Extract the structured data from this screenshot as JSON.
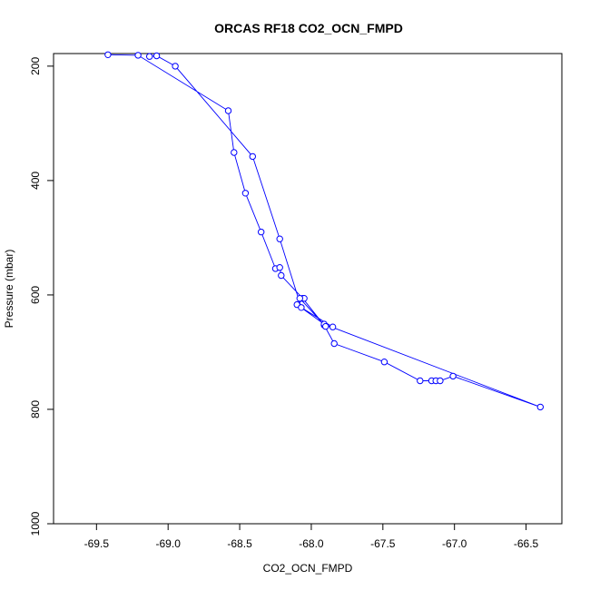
{
  "chart_data": {
    "type": "line",
    "title": "ORCAS RF18 CO2_OCN_FMPD",
    "xlabel": "CO2_OCN_FMPD",
    "ylabel": "Pressure (mbar)",
    "xlim": [
      -69.8,
      -66.25
    ],
    "ylim": [
      1000,
      178
    ],
    "y_reversed": true,
    "grid": false,
    "markers": "open-circle",
    "line_color": "#0000ff",
    "x_ticks": [
      -69.5,
      -69.0,
      -68.5,
      -68.0,
      -67.5,
      -67.0,
      -66.5
    ],
    "x_tick_labels": [
      "-69.5",
      "-69.0",
      "-68.5",
      "-68.0",
      "-67.5",
      "-67.0",
      "-66.5"
    ],
    "y_ticks": [
      200,
      400,
      600,
      800,
      1000
    ],
    "y_tick_labels": [
      "200",
      "400",
      "600",
      "800",
      "1000"
    ],
    "series": [
      {
        "points": [
          [
            -69.42,
            180
          ],
          [
            -69.21,
            181
          ],
          [
            -68.58,
            278
          ],
          [
            -68.54,
            351
          ],
          [
            -68.46,
            422
          ],
          [
            -68.35,
            490
          ],
          [
            -68.25,
            554
          ],
          [
            -68.22,
            552
          ],
          [
            -68.21,
            566
          ],
          [
            -68.06,
            606
          ],
          [
            -67.91,
            653
          ],
          [
            -67.84,
            685
          ],
          [
            -67.49,
            717
          ],
          [
            -67.24,
            750
          ],
          [
            -67.16,
            750
          ],
          [
            -67.13,
            750
          ],
          [
            -67.1,
            750
          ],
          [
            -67.01,
            742
          ],
          [
            -66.4,
            796
          ],
          [
            -67.91,
            651
          ],
          [
            -68.1,
            617
          ],
          [
            -68.05,
            606
          ],
          [
            -68.08,
            606
          ],
          [
            -67.9,
            655
          ],
          [
            -67.85,
            656
          ],
          [
            -68.07,
            622
          ],
          [
            -68.22,
            502
          ],
          [
            -68.41,
            358
          ],
          [
            -68.95,
            200
          ],
          [
            -69.08,
            182
          ],
          [
            -69.13,
            183
          ]
        ]
      }
    ]
  }
}
